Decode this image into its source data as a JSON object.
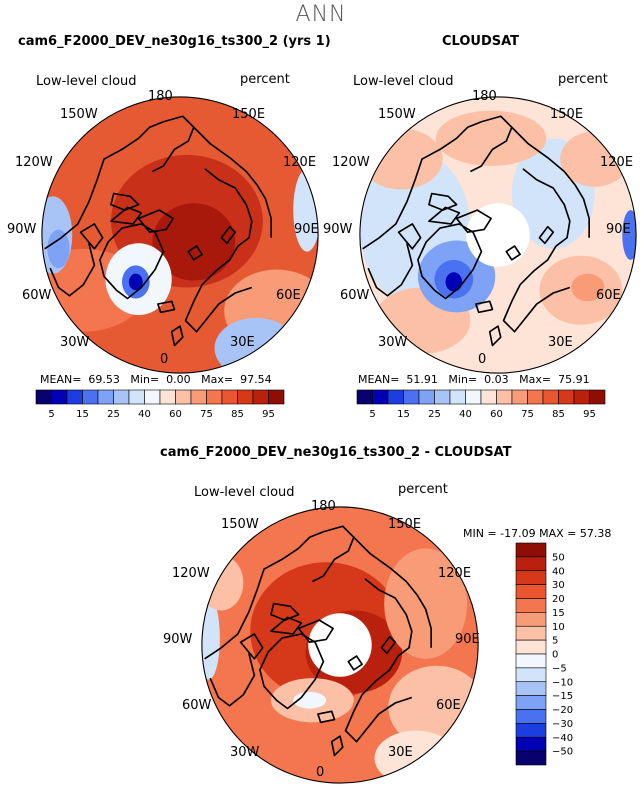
{
  "suptitle": "ANN",
  "panels": [
    {
      "title": "cam6_F2000_DEV_ne30g16_ts300_2 (yrs 1)",
      "left_label": "Low-level cloud",
      "right_label": "percent",
      "stats": {
        "mean_label": "MEAN=",
        "mean": "69.53",
        "min_label": "Min=",
        "min": "0.00",
        "max_label": "Max=",
        "max": "97.54"
      }
    },
    {
      "title": "CLOUDSAT",
      "left_label": "Low-level cloud",
      "right_label": "percent",
      "stats": {
        "mean_label": "MEAN=",
        "mean": "51.91",
        "min_label": "Min=",
        "min": "0.03",
        "max_label": "Max=",
        "max": "75.91"
      }
    },
    {
      "title": "cam6_F2000_DEV_ne30g16_ts300_2 - CLOUDSAT",
      "left_label": "Low-level cloud",
      "right_label": "percent",
      "minmax": "MIN = -17.09 MAX =  57.38"
    }
  ],
  "lon_labels": [
    "180",
    "150E",
    "120E",
    "90E",
    "60E",
    "30E",
    "0",
    "30W",
    "60W",
    "90W",
    "120W",
    "150W"
  ],
  "colorbar_top": {
    "labels": [
      "5",
      "15",
      "25",
      "40",
      "60",
      "75",
      "85",
      "95"
    ],
    "colors": [
      "#08006e",
      "#0000b4",
      "#1c3ee0",
      "#4a72f0",
      "#7ea2f5",
      "#a8c4f7",
      "#d2e4fa",
      "#f2f7fd",
      "#fde4d6",
      "#fbc0a6",
      "#f89c78",
      "#f3764f",
      "#eb5530",
      "#d6391a",
      "#b9200d",
      "#8e0d05"
    ]
  },
  "colorbar_diff": {
    "labels": [
      "50",
      "40",
      "30",
      "20",
      "15",
      "10",
      "5",
      "0",
      "−5",
      "−10",
      "−15",
      "−20",
      "−30",
      "−40",
      "−50"
    ],
    "colors": [
      "#8e0d05",
      "#b9200d",
      "#d6391a",
      "#eb5530",
      "#f3764f",
      "#f89c78",
      "#fbc0a6",
      "#fde4d6",
      "#f2f7fd",
      "#d2e4fa",
      "#a8c4f7",
      "#7ea2f5",
      "#4a72f0",
      "#1c3ee0",
      "#0000b4",
      "#08006e"
    ]
  }
}
